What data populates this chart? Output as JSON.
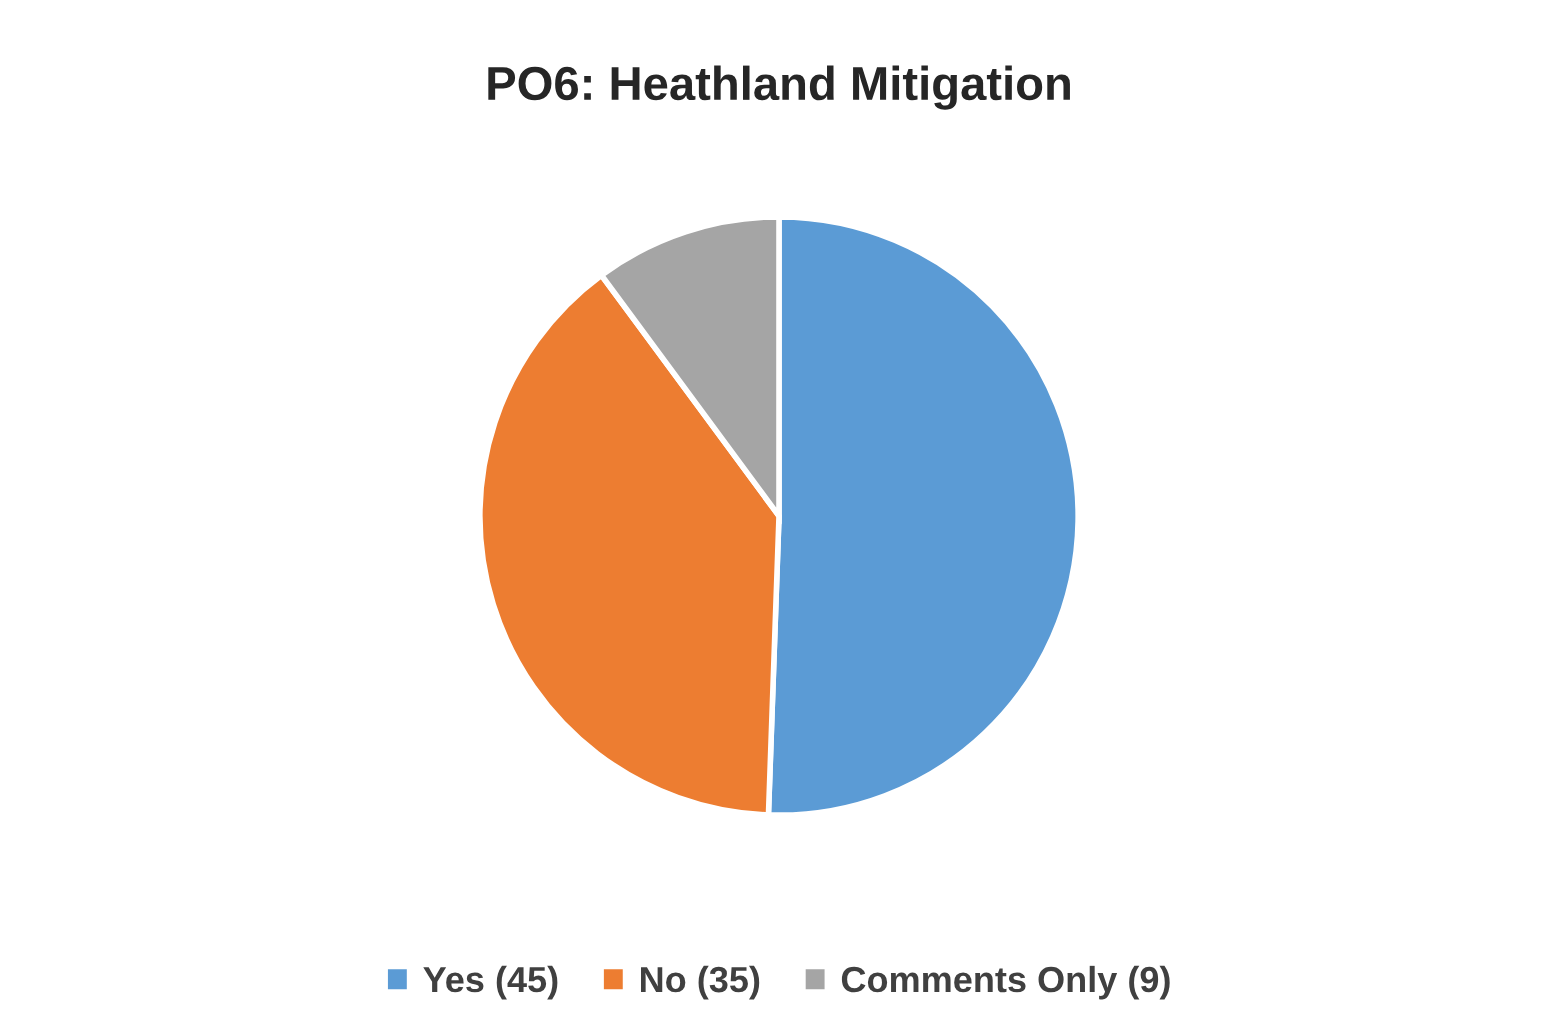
{
  "chart_data": {
    "type": "pie",
    "title": "PO6: Heathland Mitigation",
    "categories": [
      "Yes (45)",
      "No (35)",
      "Comments Only (9)"
    ],
    "values": [
      45,
      35,
      9
    ],
    "colors": [
      "#5b9bd5",
      "#ed7d31",
      "#a5a5a5"
    ],
    "legend": "bottom"
  }
}
